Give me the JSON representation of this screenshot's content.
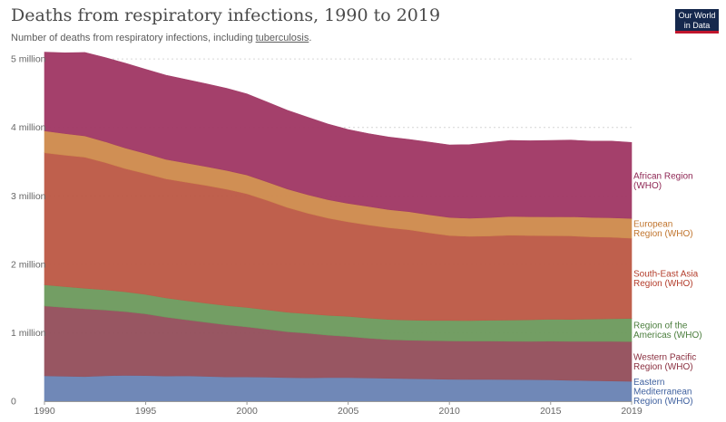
{
  "header": {
    "title": "Deaths from respiratory infections, 1990 to 2019",
    "subtitle_prefix": "Number of deaths from respiratory infections, including ",
    "subtitle_link": "tuberculosis",
    "subtitle_suffix": ".",
    "logo_line1": "Our World",
    "logo_line2": "in Data"
  },
  "chart_data": {
    "type": "area",
    "stacked": true,
    "title": "Deaths from respiratory infections, 1990 to 2019",
    "xlabel": "",
    "ylabel": "",
    "x": [
      1990,
      1991,
      1992,
      1993,
      1994,
      1995,
      1996,
      1997,
      1998,
      1999,
      2000,
      2001,
      2002,
      2003,
      2004,
      2005,
      2006,
      2007,
      2008,
      2009,
      2010,
      2011,
      2012,
      2013,
      2014,
      2015,
      2016,
      2017,
      2018,
      2019
    ],
    "ylim": [
      0,
      5200000
    ],
    "yticks": [
      0,
      1000000,
      2000000,
      3000000,
      4000000,
      5000000
    ],
    "ytick_labels": [
      "0",
      "1 million",
      "2 million",
      "3 million",
      "4 million",
      "5 million"
    ],
    "xticks": [
      1990,
      1995,
      2000,
      2005,
      2010,
      2015,
      2019
    ],
    "grid": "horizontal dotted",
    "legend": "right, inline labels at series end",
    "series": [
      {
        "name": "Eastern Mediterranean Region (WHO)",
        "color": "#6b84b5",
        "values": [
          370000,
          365000,
          360000,
          372000,
          378000,
          375000,
          368000,
          370000,
          362000,
          355000,
          355000,
          350000,
          345000,
          342000,
          345000,
          345000,
          340000,
          335000,
          330000,
          325000,
          320000,
          318000,
          318000,
          316000,
          315000,
          312000,
          305000,
          300000,
          295000,
          290000
        ]
      },
      {
        "name": "Western Pacific Region (WHO)",
        "color": "#94505c",
        "values": [
          1020000,
          1005000,
          990000,
          960000,
          930000,
          900000,
          860000,
          820000,
          790000,
          760000,
          730000,
          700000,
          670000,
          650000,
          620000,
          600000,
          580000,
          565000,
          560000,
          560000,
          560000,
          560000,
          560000,
          560000,
          560000,
          565000,
          570000,
          575000,
          580000,
          580000
        ]
      },
      {
        "name": "Region of the Americas (WHO)",
        "color": "#6e9b5e",
        "values": [
          310000,
          305000,
          300000,
          295000,
          290000,
          285000,
          280000,
          280000,
          280000,
          282000,
          285000,
          285000,
          285000,
          285000,
          290000,
          295000,
          295000,
          295000,
          295000,
          295000,
          300000,
          300000,
          305000,
          310000,
          315000,
          320000,
          320000,
          325000,
          330000,
          340000
        ]
      },
      {
        "name": "South-East Asia Region (WHO)",
        "color": "#bd5a46",
        "values": [
          1930000,
          1920000,
          1915000,
          1860000,
          1800000,
          1765000,
          1740000,
          1730000,
          1720000,
          1700000,
          1660000,
          1600000,
          1530000,
          1470000,
          1420000,
          1380000,
          1360000,
          1340000,
          1320000,
          1280000,
          1240000,
          1230000,
          1230000,
          1240000,
          1230000,
          1220000,
          1220000,
          1200000,
          1190000,
          1170000
        ]
      },
      {
        "name": "European Region (WHO)",
        "color": "#cf8b4e",
        "values": [
          320000,
          315000,
          310000,
          305000,
          300000,
          295000,
          285000,
          280000,
          275000,
          275000,
          275000,
          270000,
          270000,
          270000,
          270000,
          270000,
          270000,
          265000,
          265000,
          265000,
          265000,
          265000,
          270000,
          275000,
          275000,
          275000,
          280000,
          285000,
          285000,
          290000
        ]
      },
      {
        "name": "African Region (WHO)",
        "color": "#a13965",
        "values": [
          1150000,
          1180000,
          1220000,
          1230000,
          1240000,
          1230000,
          1230000,
          1220000,
          1210000,
          1200000,
          1185000,
          1165000,
          1150000,
          1133000,
          1105000,
          1080000,
          1065000,
          1060000,
          1055000,
          1060000,
          1060000,
          1075000,
          1097000,
          1109000,
          1110000,
          1118000,
          1120000,
          1115000,
          1120000,
          1110000
        ]
      }
    ]
  }
}
